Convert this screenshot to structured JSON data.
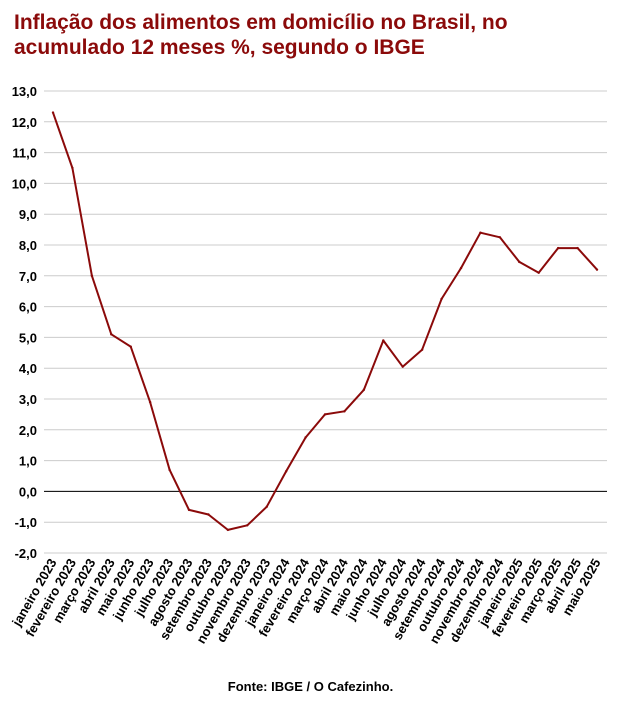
{
  "title": "Inflação dos alimentos em domicílio no Brasil, no acumulado 12 meses %, segundo o IBGE",
  "source": "Fonte: IBGE / O Cafezinho.",
  "line_color": "#8b0a0a",
  "grid_color": "#cccccc",
  "chart_data": {
    "type": "line",
    "categories": [
      "janeiro 2023",
      "fevereiro 2023",
      "março 2023",
      "abril 2023",
      "maio 2023",
      "junho 2023",
      "julho 2023",
      "agosto 2023",
      "setembro 2023",
      "outubro 2023",
      "novembro 2023",
      "dezembro 2023",
      "janeiro 2024",
      "fevereiro 2024",
      "março 2024",
      "abril 2024",
      "maio 2024",
      "junho 2024",
      "julho 2024",
      "agosto 2024",
      "setembro 2024",
      "outubro 2024",
      "novembro 2024",
      "dezembro 2024",
      "janeiro 2025",
      "fevereiro 2025",
      "março 2025",
      "abril 2025",
      "maio 2025"
    ],
    "values": [
      12.3,
      10.5,
      7.0,
      5.1,
      4.7,
      2.9,
      0.7,
      -0.6,
      -0.75,
      -1.25,
      -1.1,
      -0.5,
      0.65,
      1.75,
      2.5,
      2.6,
      3.3,
      4.9,
      4.05,
      4.6,
      6.25,
      7.25,
      8.4,
      8.25,
      7.45,
      7.1,
      7.9,
      7.9,
      7.2
    ],
    "yticks": [
      "13,0",
      "12,0",
      "11,0",
      "10,0",
      "9,0",
      "8,0",
      "7,0",
      "6,0",
      "5,0",
      "4,0",
      "3,0",
      "2,0",
      "1,0",
      "0,0",
      "-1,0",
      "-2,0"
    ],
    "ylim": [
      -2,
      13
    ],
    "grid": true
  }
}
